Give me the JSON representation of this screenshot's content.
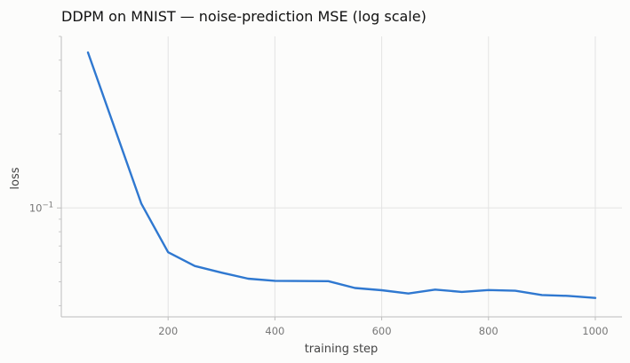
{
  "chart_data": {
    "type": "line",
    "title": "DDPM on MNIST — noise-prediction MSE (log scale)",
    "xlabel": "training step",
    "ylabel": "loss",
    "x_ticks": [
      200,
      400,
      600,
      800,
      1000
    ],
    "y_ticks": [
      {
        "value": 0.1,
        "base": "10",
        "exp": "−1"
      }
    ],
    "xlim": [
      0,
      1050
    ],
    "ylim": [
      0.036,
      0.5
    ],
    "yscale": "log",
    "grid": true,
    "colors": {
      "line": "#2f78d0",
      "grid": "#e3e3e3",
      "axis": "#bdbdbd"
    },
    "series": [
      {
        "x": [
          50,
          150,
          200,
          250,
          300,
          350,
          400,
          500,
          550,
          600,
          650,
          700,
          750,
          800,
          850,
          900,
          950,
          1000
        ],
        "values": [
          0.43,
          0.104,
          0.066,
          0.058,
          0.0545,
          0.0515,
          0.0505,
          0.0503,
          0.0472,
          0.0462,
          0.0448,
          0.0465,
          0.0455,
          0.0463,
          0.046,
          0.0442,
          0.0438,
          0.043
        ]
      }
    ]
  }
}
